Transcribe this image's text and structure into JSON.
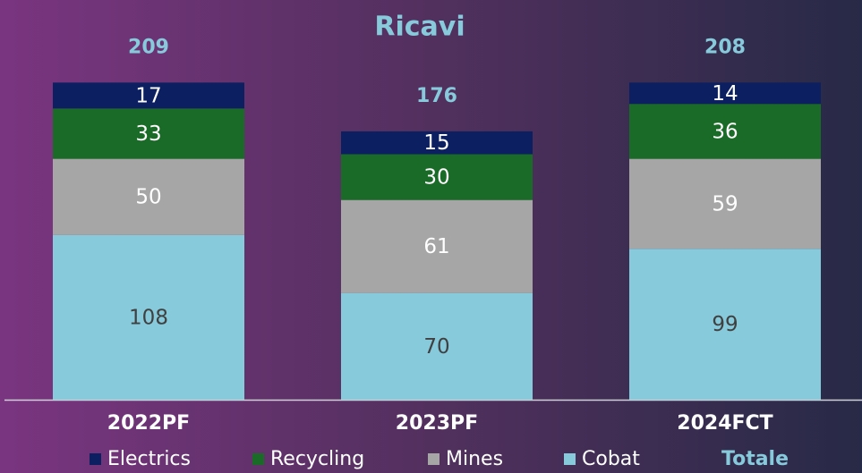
{
  "chart_data": {
    "type": "stacked_bar",
    "title": "Ricavi",
    "categories": [
      "2022PF",
      "2023PF",
      "2024FCT"
    ],
    "series": [
      {
        "name": "Electrics",
        "color": "#0c1f60",
        "label_color": "#ffffff",
        "values": [
          17,
          15,
          14
        ]
      },
      {
        "name": "Recycling",
        "color": "#1b6b28",
        "label_color": "#ffffff",
        "values": [
          33,
          30,
          36
        ]
      },
      {
        "name": "Mines",
        "color": "#a6a6a6",
        "label_color": "#ffffff",
        "values": [
          50,
          61,
          59
        ]
      },
      {
        "name": "Cobat",
        "color": "#86cadb",
        "label_color": "#404040",
        "values": [
          108,
          70,
          99
        ]
      }
    ],
    "total_name": "Totale",
    "totals": [
      209,
      176,
      208
    ],
    "total_color": "#86cadb"
  }
}
